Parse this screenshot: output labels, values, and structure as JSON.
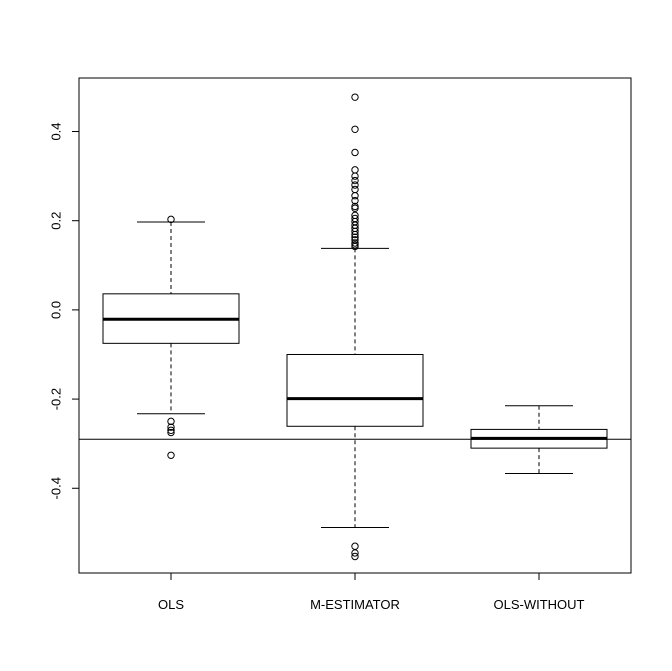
{
  "chart_data": {
    "type": "boxplot",
    "title": "",
    "xlabel": "",
    "ylabel": "",
    "ylim": [
      -0.59,
      0.52
    ],
    "yticks": [
      -0.4,
      -0.2,
      0.0,
      0.2,
      0.4
    ],
    "ytick_labels": [
      "-0.4",
      "-0.2",
      "0.0",
      "0.2",
      "0.4"
    ],
    "reference_line_y": -0.29,
    "categories": [
      "OLS",
      "M-ESTIMATOR",
      "OLS-WITHOUT"
    ],
    "boxes": [
      {
        "label": "OLS",
        "whisker_low": -0.233,
        "q1": -0.075,
        "median": -0.021,
        "q3": 0.036,
        "whisker_high": 0.197,
        "outliers": [
          0.203,
          -0.25,
          -0.263,
          -0.27,
          -0.275,
          -0.326
        ]
      },
      {
        "label": "M-ESTIMATOR",
        "whisker_low": -0.488,
        "q1": -0.261,
        "median": -0.199,
        "q3": -0.1,
        "whisker_high": 0.138,
        "outliers": [
          0.477,
          0.405,
          0.353,
          0.314,
          0.3,
          0.29,
          0.28,
          0.27,
          0.256,
          0.245,
          0.232,
          0.228,
          0.212,
          0.205,
          0.198,
          0.19,
          0.183,
          0.176,
          0.169,
          0.163,
          0.157,
          0.15,
          0.146,
          0.142,
          -0.53,
          -0.545,
          -0.553
        ]
      },
      {
        "label": "OLS-WITHOUT",
        "whisker_low": -0.367,
        "q1": -0.31,
        "median": -0.288,
        "q3": -0.268,
        "whisker_high": -0.215,
        "outliers": []
      }
    ]
  }
}
